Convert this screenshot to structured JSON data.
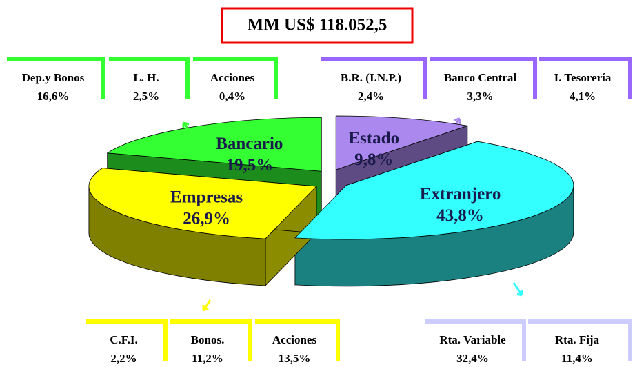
{
  "chart_data": {
    "type": "pie",
    "title": "MM US$ 118.052,5",
    "categories": [
      "Estado",
      "Extranjero",
      "Empresas",
      "Bancario"
    ],
    "values": [
      9.8,
      43.8,
      26.9,
      19.5
    ],
    "value_labels": [
      "9,8%",
      "43,8%",
      "26,9%",
      "19,5%"
    ],
    "colors": [
      "#aa88ee",
      "#33ffff",
      "#ffff00",
      "#33ff33"
    ],
    "breakdowns": [
      {
        "color": "#33ff33",
        "categories": [
          "Dep.y Bonos",
          "L. H.",
          "Acciones"
        ],
        "values": [
          16.6,
          2.5,
          0.4
        ],
        "value_labels": [
          "16,6%",
          "2,5%",
          "0,4%"
        ]
      },
      {
        "color": "#9966ff",
        "categories": [
          "B.R. (I.N.P.)",
          "Banco Central",
          "I. Tesorería"
        ],
        "values": [
          2.4,
          3.3,
          4.1
        ],
        "value_labels": [
          "2,4%",
          "3,3%",
          "4,1%"
        ]
      },
      {
        "color": "#ffff00",
        "categories": [
          "C.F.I.",
          "Bonos.",
          "Acciones"
        ],
        "values": [
          2.2,
          11.2,
          13.5
        ],
        "value_labels": [
          "2,2%",
          "11,2%",
          "13,5%"
        ]
      },
      {
        "color": "#ccccff",
        "categories": [
          "Rta. Variable",
          "Rta. Fija"
        ],
        "values": [
          32.4,
          11.4
        ],
        "value_labels": [
          "32,4%",
          "11,4%"
        ]
      }
    ]
  }
}
